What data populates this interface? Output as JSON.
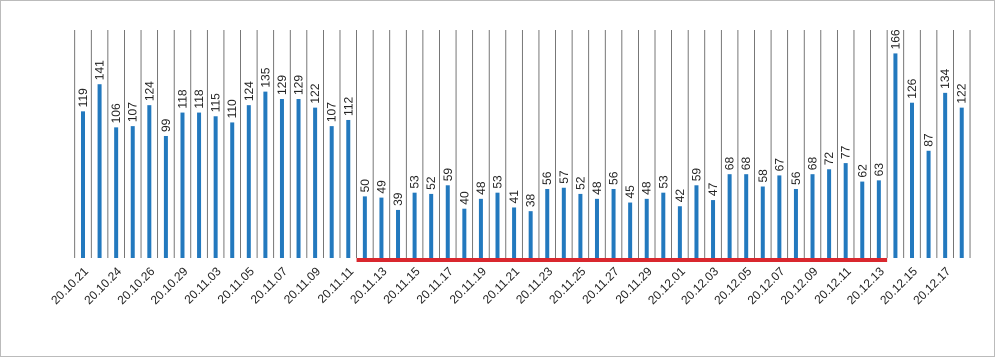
{
  "chart_data": {
    "type": "bar",
    "categories": [
      "20.10.21",
      null,
      "20.10.24",
      null,
      "20.10.26",
      null,
      "20.10.29",
      null,
      "20.11.03",
      null,
      "20.11.05",
      null,
      "20.11.07",
      null,
      "20.11.09",
      null,
      "20.11.11",
      null,
      "20.11.13",
      null,
      "20.11.15",
      null,
      "20.11.17",
      null,
      "20.11.19",
      null,
      "20.11.21",
      null,
      "20.11.23",
      null,
      "20.11.25",
      null,
      "20.11.27",
      null,
      "20.11.29",
      null,
      "20.12.01",
      null,
      "20.12.03",
      null,
      "20.12.05",
      null,
      "20.12.07",
      null,
      "20.12.09",
      null,
      "20.12.11",
      null,
      "20.12.13",
      null,
      "20.12.15",
      null,
      "20.12.17",
      null
    ],
    "values": [
      119,
      141,
      106,
      107,
      124,
      99,
      118,
      118,
      115,
      110,
      124,
      135,
      129,
      129,
      122,
      107,
      112,
      50,
      49,
      39,
      53,
      52,
      59,
      40,
      48,
      53,
      41,
      38,
      56,
      57,
      52,
      48,
      56,
      45,
      48,
      53,
      42,
      59,
      47,
      68,
      68,
      58,
      67,
      56,
      68,
      72,
      77,
      62,
      63,
      166,
      126,
      87,
      134,
      122
    ],
    "color": "#2379be",
    "ylim": [
      0,
      185
    ],
    "highlight": {
      "start_index": 17,
      "end_index": 48,
      "color": "#d9272e"
    }
  }
}
